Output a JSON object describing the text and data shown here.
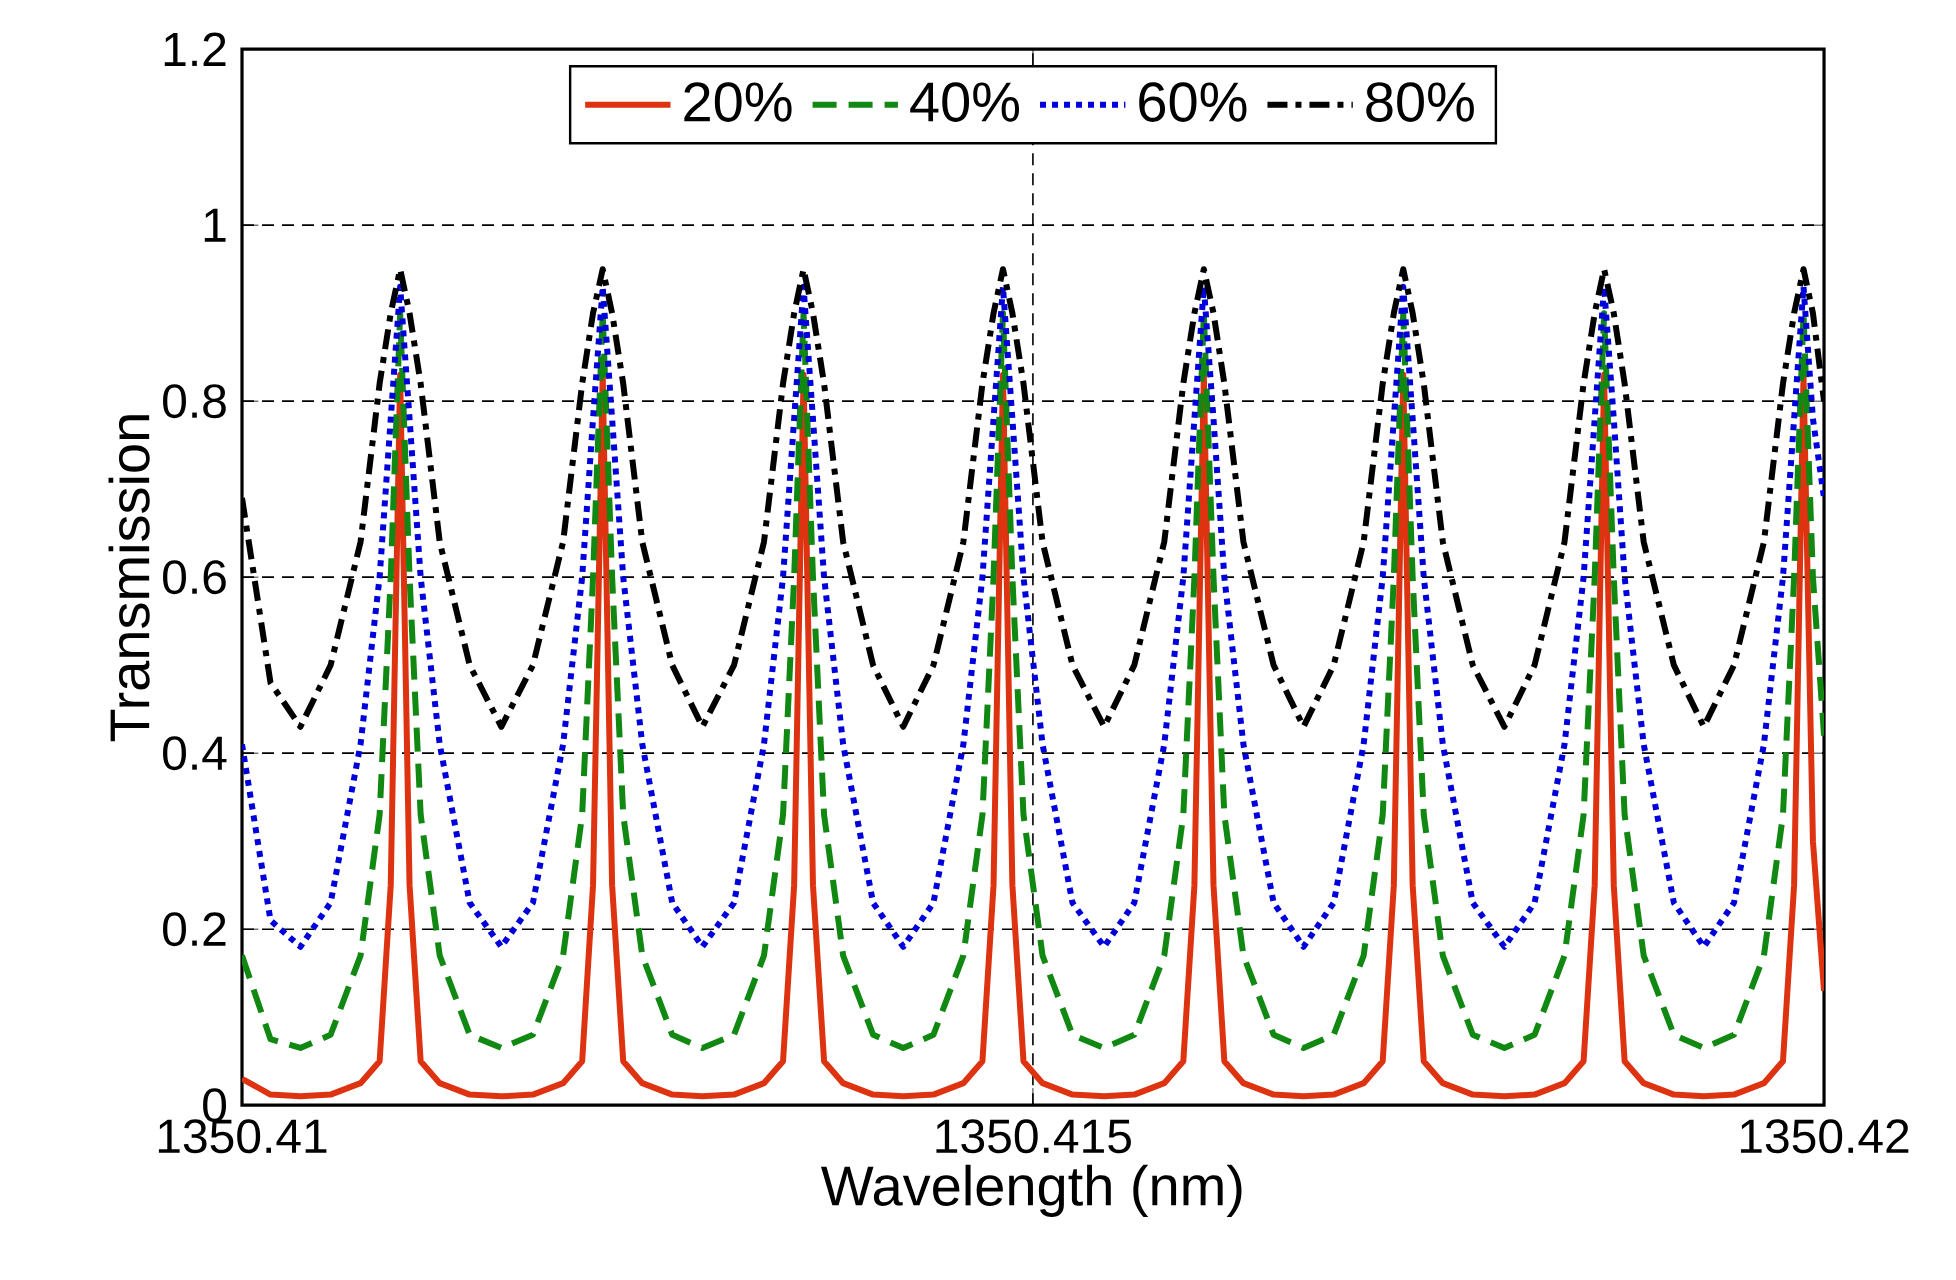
{
  "chart_data": {
    "type": "line",
    "xlabel": "Wavelength (nm)",
    "ylabel": "Transmission",
    "x": [
      1350.41,
      1350.41018,
      1350.41037,
      1350.41056,
      1350.41075,
      1350.41087,
      1350.41094,
      1350.411,
      1350.41106,
      1350.41113,
      1350.41125,
      1350.41144,
      1350.41164,
      1350.41184,
      1350.41203,
      1350.41215,
      1350.41222,
      1350.41228,
      1350.41234,
      1350.41241,
      1350.41253,
      1350.41272,
      1350.41291,
      1350.41311,
      1350.4133,
      1350.41342,
      1350.41349,
      1350.41355,
      1350.41361,
      1350.41368,
      1350.4138,
      1350.41399,
      1350.41418,
      1350.41437,
      1350.41456,
      1350.41468,
      1350.41475,
      1350.41481,
      1350.41487,
      1350.41494,
      1350.41506,
      1350.41525,
      1350.41545,
      1350.41564,
      1350.41583,
      1350.41595,
      1350.41602,
      1350.41608,
      1350.41614,
      1350.41621,
      1350.41633,
      1350.41652,
      1350.41671,
      1350.4169,
      1350.41709,
      1350.41721,
      1350.41728,
      1350.41734,
      1350.4174,
      1350.41747,
      1350.41759,
      1350.41778,
      1350.41798,
      1350.41817,
      1350.41836,
      1350.41848,
      1350.41855,
      1350.41861,
      1350.41867,
      1350.41874,
      1350.41886,
      1350.41905,
      1350.41924,
      1350.41943,
      1350.41962,
      1350.41974,
      1350.41981,
      1350.41987,
      1350.41993,
      1350.42
    ],
    "series": [
      {
        "name": "20%",
        "color": "#dd3311",
        "line_style": "solid",
        "values": [
          0.03,
          0.012,
          0.01,
          0.012,
          0.025,
          0.05,
          0.25,
          0.83,
          0.25,
          0.05,
          0.025,
          0.012,
          0.01,
          0.012,
          0.025,
          0.05,
          0.25,
          0.83,
          0.25,
          0.05,
          0.025,
          0.012,
          0.01,
          0.012,
          0.025,
          0.05,
          0.25,
          0.83,
          0.25,
          0.05,
          0.025,
          0.012,
          0.01,
          0.012,
          0.025,
          0.05,
          0.25,
          0.83,
          0.25,
          0.05,
          0.025,
          0.012,
          0.01,
          0.012,
          0.025,
          0.05,
          0.25,
          0.83,
          0.25,
          0.05,
          0.025,
          0.012,
          0.01,
          0.012,
          0.025,
          0.05,
          0.25,
          0.83,
          0.25,
          0.05,
          0.025,
          0.012,
          0.01,
          0.012,
          0.025,
          0.05,
          0.25,
          0.83,
          0.25,
          0.05,
          0.025,
          0.012,
          0.01,
          0.012,
          0.025,
          0.05,
          0.25,
          0.83,
          0.3,
          0.13
        ]
      },
      {
        "name": "40%",
        "color": "#118811",
        "line_style": "dashed",
        "values": [
          0.17,
          0.075,
          0.065,
          0.08,
          0.17,
          0.33,
          0.6,
          0.9,
          0.6,
          0.33,
          0.17,
          0.08,
          0.065,
          0.08,
          0.17,
          0.33,
          0.6,
          0.9,
          0.6,
          0.33,
          0.17,
          0.08,
          0.065,
          0.08,
          0.17,
          0.33,
          0.6,
          0.9,
          0.6,
          0.33,
          0.17,
          0.08,
          0.065,
          0.08,
          0.17,
          0.33,
          0.6,
          0.9,
          0.6,
          0.33,
          0.17,
          0.08,
          0.065,
          0.08,
          0.17,
          0.33,
          0.6,
          0.9,
          0.6,
          0.33,
          0.17,
          0.08,
          0.065,
          0.08,
          0.17,
          0.33,
          0.6,
          0.9,
          0.6,
          0.33,
          0.17,
          0.08,
          0.065,
          0.08,
          0.17,
          0.33,
          0.6,
          0.9,
          0.6,
          0.33,
          0.17,
          0.08,
          0.065,
          0.08,
          0.17,
          0.33,
          0.6,
          0.9,
          0.6,
          0.42
        ]
      },
      {
        "name": "60%",
        "color": "#0000dd",
        "line_style": "dotted",
        "values": [
          0.41,
          0.21,
          0.18,
          0.23,
          0.41,
          0.6,
          0.78,
          0.93,
          0.78,
          0.6,
          0.41,
          0.23,
          0.18,
          0.23,
          0.41,
          0.6,
          0.78,
          0.93,
          0.78,
          0.6,
          0.41,
          0.23,
          0.18,
          0.23,
          0.41,
          0.6,
          0.78,
          0.93,
          0.78,
          0.6,
          0.41,
          0.23,
          0.18,
          0.23,
          0.41,
          0.6,
          0.78,
          0.93,
          0.78,
          0.6,
          0.41,
          0.23,
          0.18,
          0.23,
          0.41,
          0.6,
          0.78,
          0.93,
          0.78,
          0.6,
          0.41,
          0.23,
          0.18,
          0.23,
          0.41,
          0.6,
          0.78,
          0.93,
          0.78,
          0.6,
          0.41,
          0.23,
          0.18,
          0.23,
          0.41,
          0.6,
          0.78,
          0.93,
          0.78,
          0.6,
          0.41,
          0.23,
          0.18,
          0.23,
          0.41,
          0.6,
          0.78,
          0.93,
          0.78,
          0.69
        ]
      },
      {
        "name": "80%",
        "color": "#000000",
        "line_style": "dashdot",
        "values": [
          0.69,
          0.48,
          0.43,
          0.5,
          0.64,
          0.82,
          0.9,
          0.95,
          0.9,
          0.82,
          0.64,
          0.5,
          0.43,
          0.5,
          0.64,
          0.82,
          0.9,
          0.95,
          0.9,
          0.82,
          0.64,
          0.5,
          0.43,
          0.5,
          0.64,
          0.82,
          0.9,
          0.95,
          0.9,
          0.82,
          0.64,
          0.5,
          0.43,
          0.5,
          0.64,
          0.82,
          0.9,
          0.95,
          0.9,
          0.82,
          0.64,
          0.5,
          0.43,
          0.5,
          0.64,
          0.82,
          0.9,
          0.95,
          0.9,
          0.82,
          0.64,
          0.5,
          0.43,
          0.5,
          0.64,
          0.82,
          0.9,
          0.95,
          0.9,
          0.82,
          0.64,
          0.5,
          0.43,
          0.5,
          0.64,
          0.82,
          0.9,
          0.95,
          0.9,
          0.82,
          0.64,
          0.5,
          0.43,
          0.5,
          0.64,
          0.82,
          0.9,
          0.95,
          0.9,
          0.8
        ]
      }
    ],
    "xlim": [
      1350.41,
      1350.42
    ],
    "xticks": [
      1350.41,
      1350.415,
      1350.42
    ],
    "ylim": [
      0,
      1.2
    ],
    "yticks": [
      0,
      0.2,
      0.4,
      0.6,
      0.8,
      1,
      1.2
    ],
    "grid": true,
    "legend": "top",
    "marker": "none"
  }
}
